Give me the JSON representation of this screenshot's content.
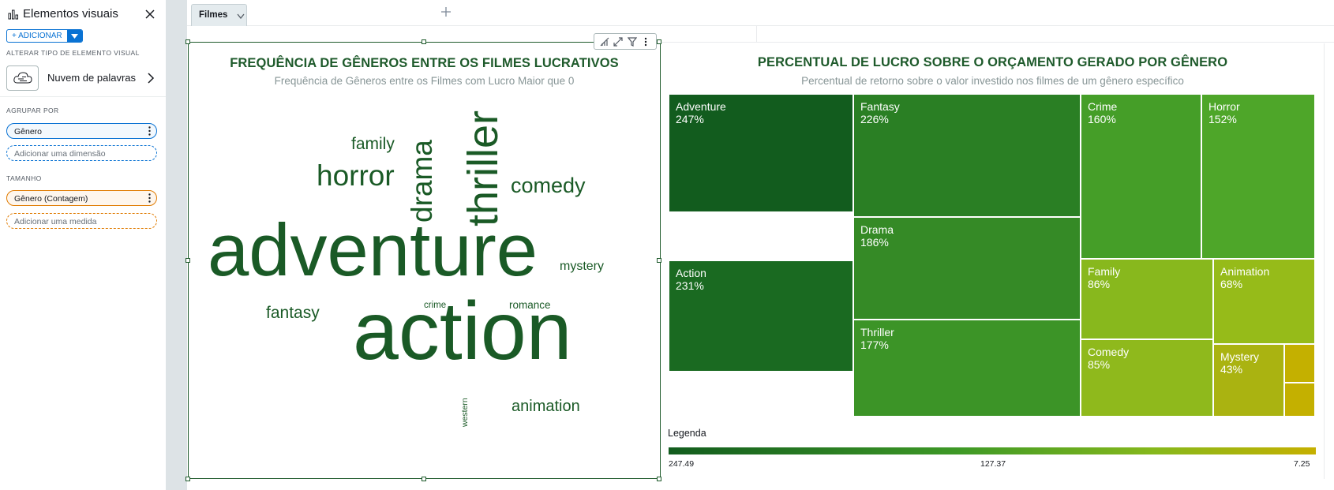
{
  "panel": {
    "title": "Elementos visuais",
    "add_label": "+ ADICIONAR",
    "change_type_label": "ALTERAR TIPO DE ELEMENTO VISUAL",
    "visual_type": "Nuvem de palavras",
    "group_by_label": "AGRUPAR POR",
    "group_field": "Gênero",
    "add_dimension": "Adicionar uma dimensão",
    "size_label": "TAMANHO",
    "size_field": "Gênero (Contagem)",
    "add_measure": "Adicionar uma medida"
  },
  "tabs": [
    {
      "label": "Filmes"
    }
  ],
  "wordcloud": {
    "title": "FREQUÊNCIA DE GÊNEROS ENTRE OS FILMES LUCRATIVOS",
    "subtitle": "Frequência de Gêneros entre os Filmes com Lucro Maior que 0",
    "words": [
      {
        "text": "adventure"
      },
      {
        "text": "action"
      },
      {
        "text": "thriller"
      },
      {
        "text": "drama"
      },
      {
        "text": "horror"
      },
      {
        "text": "comedy"
      },
      {
        "text": "family"
      },
      {
        "text": "fantasy"
      },
      {
        "text": "mystery"
      },
      {
        "text": "animation"
      },
      {
        "text": "romance"
      },
      {
        "text": "crime"
      },
      {
        "text": "western"
      }
    ]
  },
  "treemap": {
    "title": "PERCENTUAL DE LUCRO SOBRE O ORÇAMENTO GERADO POR GÊNERO",
    "subtitle": "Percentual de retorno sobre o valor investido nos filmes de um gênero específico",
    "colors": {
      "c1": "#125c1e",
      "c2": "#1a6a21",
      "c3": "#2a7f24",
      "c4": "#358a26",
      "c5": "#3c9427",
      "c6": "#459e28",
      "c7": "#4ea629",
      "c8": "#88b81d",
      "c9": "#8fb91c",
      "c10": "#96bb19",
      "c11": "#aab311",
      "c12": "#c4b000"
    },
    "cells": [
      {
        "name": "Adventure",
        "value": "247%"
      },
      {
        "name": "Action",
        "value": "231%"
      },
      {
        "name": "Fantasy",
        "value": "226%"
      },
      {
        "name": "Drama",
        "value": "186%"
      },
      {
        "name": "Thriller",
        "value": "177%"
      },
      {
        "name": "Crime",
        "value": "160%"
      },
      {
        "name": "Horror",
        "value": "152%"
      },
      {
        "name": "Family",
        "value": "86%"
      },
      {
        "name": "Animation",
        "value": "68%"
      },
      {
        "name": "Comedy",
        "value": "85%"
      },
      {
        "name": "Mystery",
        "value": "43%"
      },
      {
        "name": "",
        "value": ""
      },
      {
        "name": "",
        "value": ""
      }
    ],
    "legend": {
      "title": "Legenda",
      "min": "247.49",
      "mid": "127.37",
      "max": "7.25"
    }
  }
}
